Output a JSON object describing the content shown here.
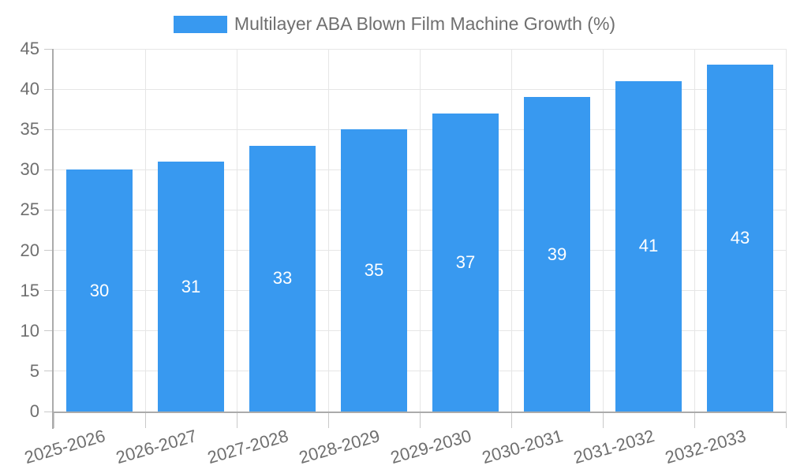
{
  "chart_data": {
    "type": "bar",
    "title": "Multilayer ABA Blown Film Machine Growth (%)",
    "categories": [
      "2025-2026",
      "2026-2027",
      "2027-2028",
      "2028-2029",
      "2029-2030",
      "2030-2031",
      "2031-2032",
      "2032-2033"
    ],
    "series": [
      {
        "name": "Multilayer ABA Blown Film Machine Growth (%)",
        "values": [
          30,
          31,
          33,
          35,
          37,
          39,
          41,
          43
        ]
      }
    ],
    "xlabel": "",
    "ylabel": "",
    "ylim": [
      0,
      45
    ],
    "ytick_step": 5,
    "grid": "on",
    "legend_position": "top",
    "value_labels": "inside-center"
  },
  "legend": {
    "label": "Multilayer ABA Blown Film Machine Growth (%)"
  },
  "colors": {
    "bar": "#3899f0",
    "grid": "#e6e6e6",
    "axis": "#ababab",
    "tick": "#c9c9c9",
    "text": "#6f6f6f",
    "bar_label": "#ffffff",
    "bg": "#ffffff"
  }
}
